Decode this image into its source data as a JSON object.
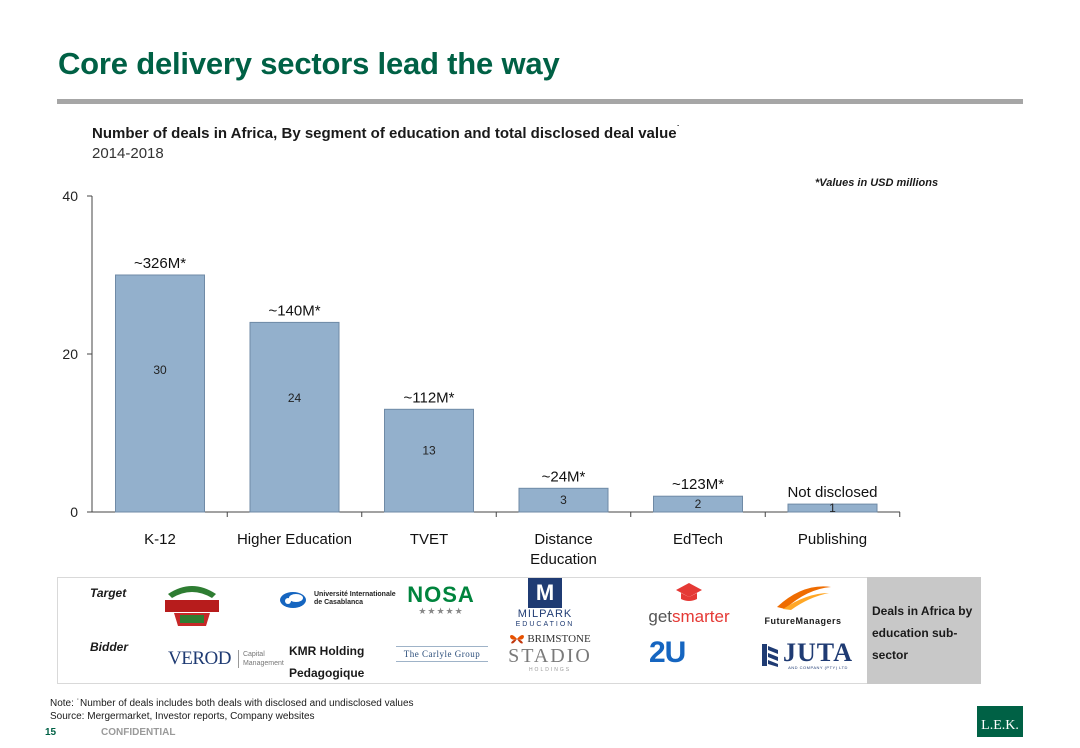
{
  "page": {
    "title": "Core delivery sectors lead the way",
    "page_number": "15",
    "confidential": "CONFIDENTIAL",
    "note_line1": "Note: ˙Number of deals includes both deals with disclosed and undisclosed values",
    "note_line2": "Source: Mergermarket, Investor reports, Company websites",
    "brand": "L.E.K."
  },
  "chart_header": {
    "title": "Number of deals in Africa, By segment of education and total disclosed deal value",
    "title_marker": "˙",
    "subtitle": "2014-2018",
    "value_note": "*Values in USD millions"
  },
  "chart_data": {
    "type": "bar",
    "categories": [
      "K-12",
      "Higher Education",
      "TVET",
      "Distance Education",
      "EdTech",
      "Publishing"
    ],
    "values": [
      30,
      24,
      13,
      3,
      2,
      1
    ],
    "deal_value_labels": [
      "~326M*",
      "~140M*",
      "~112M*",
      "~24M*",
      "~123M*",
      "Not disclosed"
    ],
    "ylim": [
      0,
      40
    ],
    "yticks": [
      0,
      20,
      40
    ],
    "grid": false,
    "bar_color": "#93b0cc",
    "bar_edge_color": "#6f8aa6"
  },
  "logos": {
    "target_label": "Target",
    "bidder_label": "Bidder",
    "targets": [
      {
        "segment": "K-12",
        "name": "crest-logo"
      },
      {
        "segment": "Higher Education",
        "line1": "Université Internationale",
        "line2": "de Casablanca"
      },
      {
        "segment": "TVET",
        "name": "NOSA",
        "stars": "★★★★★"
      },
      {
        "segment": "Distance Education",
        "letter": "M",
        "name": "MILPARK",
        "sub": "EDUCATION"
      },
      {
        "segment": "EdTech",
        "part1": "get",
        "part2": "smarter"
      },
      {
        "segment": "Publishing",
        "name": "FutureManagers"
      }
    ],
    "bidders": [
      {
        "segment": "K-12",
        "name": "VEROD",
        "sub1": "Capital",
        "sub2": "Management"
      },
      {
        "segment": "Higher Education",
        "line1": "KMR Holding",
        "line2": "Pedagogique"
      },
      {
        "segment": "TVET",
        "name": "The Carlyle Group"
      },
      {
        "segment": "Distance Education",
        "line1": "BRIMSTONE",
        "line2": "STADIO",
        "line3": "HOLDINGS"
      },
      {
        "segment": "EdTech",
        "name": "2U"
      },
      {
        "segment": "Publishing",
        "name": "JUTA",
        "sub": "AND COMPANY (PTY) LTD"
      }
    ],
    "side_label": "Deals in Africa by education sub-sector"
  },
  "colors": {
    "brand_green": "#006145",
    "rule_gray": "#a6a6a6",
    "side_box_gray": "#c8c8c8"
  }
}
